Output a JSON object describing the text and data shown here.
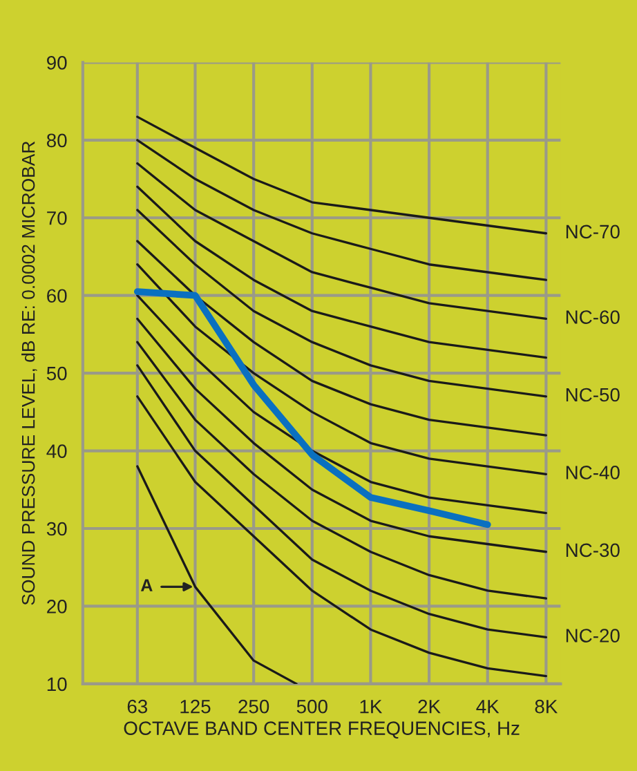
{
  "chart_data": {
    "type": "line",
    "ylabel": "SOUND PRESSURE LEVEL, dB RE: 0.0002 MICROBAR",
    "xlabel": "OCTAVE BAND CENTER FREQUENCIES, Hz",
    "log": "x",
    "xlim": [
      33,
      9500
    ],
    "xticks": [
      63,
      125,
      250,
      500,
      {
        "value": 1000,
        "label": "1K"
      },
      {
        "value": 2000,
        "label": "2K"
      },
      {
        "value": 4000,
        "label": "4K"
      },
      {
        "value": 8000,
        "label": "8K"
      }
    ],
    "ylim": [
      10,
      90
    ],
    "yticks": [
      10,
      20,
      30,
      40,
      50,
      60,
      70,
      80,
      90
    ],
    "grid": true,
    "x": [
      63,
      125,
      250,
      500,
      1000,
      2000,
      4000,
      8000
    ],
    "series": [
      {
        "color": "#1a1a1a",
        "values": [
          47,
          36,
          29,
          22,
          17,
          14,
          12,
          11
        ]
      },
      {
        "name": "NC-20",
        "color": "#1a1a1a",
        "values": [
          51,
          40,
          33,
          26,
          22,
          19,
          17,
          16
        ]
      },
      {
        "color": "#1a1a1a",
        "values": [
          54,
          44,
          37,
          31,
          27,
          24,
          22,
          21
        ]
      },
      {
        "name": "NC-30",
        "color": "#1a1a1a",
        "values": [
          57,
          48,
          41,
          35,
          31,
          29,
          28,
          27
        ]
      },
      {
        "color": "#1a1a1a",
        "values": [
          60,
          52,
          45,
          40,
          36,
          34,
          33,
          32
        ]
      },
      {
        "name": "NC-40",
        "color": "#1a1a1a",
        "values": [
          64,
          56,
          50,
          45,
          41,
          39,
          38,
          37
        ]
      },
      {
        "color": "#1a1a1a",
        "values": [
          67,
          60,
          54,
          49,
          46,
          44,
          43,
          42
        ]
      },
      {
        "name": "NC-50",
        "color": "#1a1a1a",
        "values": [
          71,
          64,
          58,
          54,
          51,
          49,
          48,
          47
        ]
      },
      {
        "color": "#1a1a1a",
        "values": [
          74,
          67,
          62,
          58,
          56,
          54,
          53,
          52
        ]
      },
      {
        "name": "NC-60",
        "color": "#1a1a1a",
        "values": [
          77,
          71,
          67,
          63,
          61,
          59,
          58,
          57
        ]
      },
      {
        "color": "#1a1a1a",
        "values": [
          80,
          75,
          71,
          68,
          66,
          64,
          63,
          62
        ]
      },
      {
        "name": "NC-70",
        "color": "#1a1a1a",
        "values": [
          83,
          79,
          75,
          72,
          71,
          70,
          69,
          68
        ]
      },
      {
        "color": "#1a1a1a",
        "x": [
          63,
          125,
          250,
          415
        ],
        "values": [
          38,
          22.5,
          13,
          10
        ]
      },
      {
        "color": "#0a70c0",
        "x": [
          63,
          125,
          250,
          500,
          1000,
          2000,
          4000
        ],
        "values": [
          60.5,
          60,
          48.5,
          39.5,
          34,
          32.3,
          30.5
        ]
      }
    ],
    "annotations": [
      {
        "text": "A",
        "x": 125,
        "y": 22.5
      }
    ]
  }
}
